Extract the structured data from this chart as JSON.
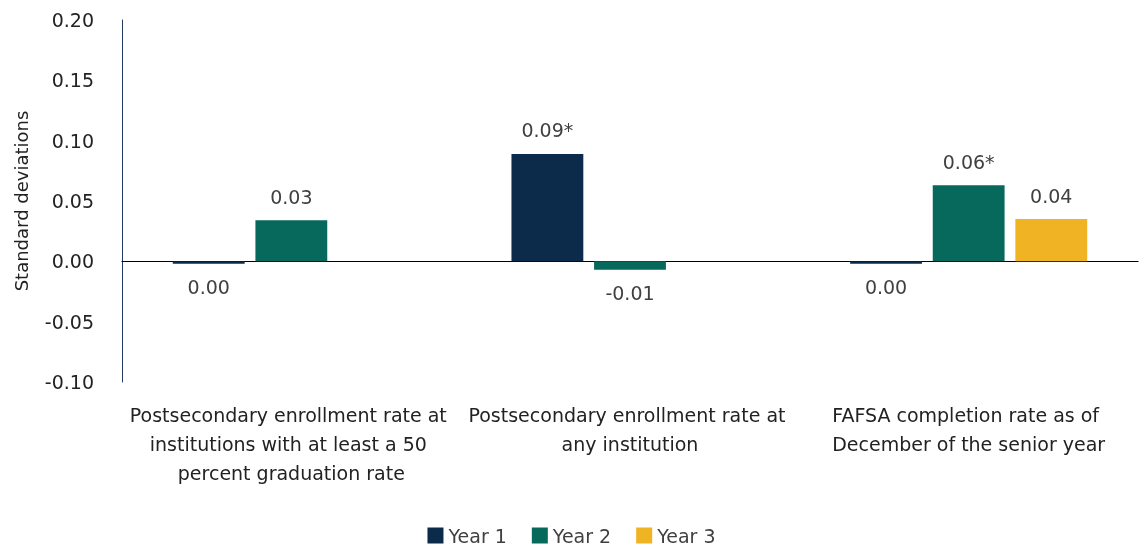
{
  "chart_data": {
    "type": "bar",
    "ylabel": "Standard deviations",
    "categories": [
      "Postsecondary enrollment rate at institutions with at least a 50 percent graduation rate",
      "Postsecondary enrollment rate at any institution",
      "FAFSA completion rate as of December of the senior year"
    ],
    "series": [
      {
        "name": "Year 1",
        "color": "#0c2a4a",
        "values": [
          -0.002,
          0.089,
          -0.002
        ],
        "value_labels": [
          "0.00",
          "0.09*",
          "0.00"
        ]
      },
      {
        "name": "Year 2",
        "color": "#07695c",
        "values": [
          0.034,
          -0.007,
          0.063
        ],
        "value_labels": [
          "0.03",
          "-0.01",
          "0.06*"
        ]
      },
      {
        "name": "Year 3",
        "color": "#f0b323",
        "values": [
          null,
          null,
          0.035
        ],
        "value_labels": [
          null,
          null,
          "0.04"
        ]
      }
    ],
    "ylim": [
      -0.1,
      0.2
    ],
    "yticks": [
      {
        "value": -0.1,
        "label": "-0.10"
      },
      {
        "value": -0.05,
        "label": "-0.05"
      },
      {
        "value": 0,
        "label": "0.00"
      },
      {
        "value": 0.05,
        "label": "0.05"
      },
      {
        "value": 0.1,
        "label": "0.10"
      },
      {
        "value": 0.15,
        "label": "0.15"
      },
      {
        "value": 0.2,
        "label": "0.20"
      }
    ],
    "legend": "bottom"
  }
}
